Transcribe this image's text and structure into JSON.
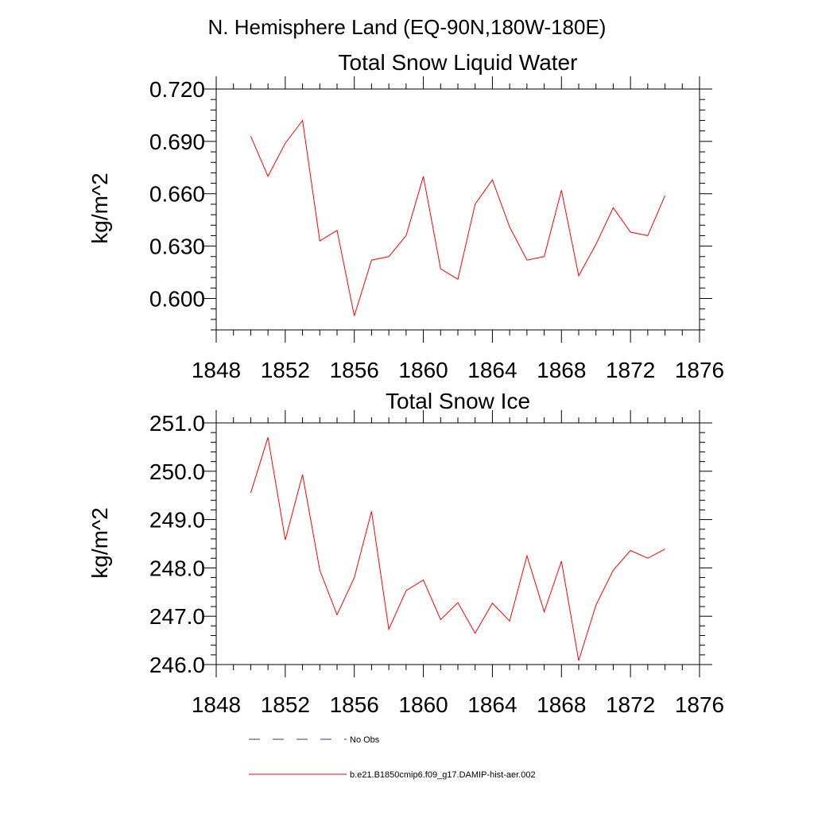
{
  "figure": {
    "region_title": "N. Hemisphere Land (EQ-90N,180W-180E)"
  },
  "colors": {
    "series_line": "#ff0000",
    "no_obs_line": "#3a3a6a",
    "axis": "#000000",
    "background": "#ffffff"
  },
  "legend": {
    "no_obs_label": "No Obs",
    "series_label": "b.e21.B1850cmip6.f09_g17.DAMIP-hist-aer.002"
  },
  "chart_data": [
    {
      "type": "line",
      "title": "Total Snow Liquid Water",
      "xlabel": "",
      "ylabel": "kg/m^2",
      "xlim": [
        1848,
        1876
      ],
      "ylim": [
        0.582,
        0.72
      ],
      "xticks": [
        1848,
        1852,
        1856,
        1860,
        1864,
        1868,
        1872,
        1876
      ],
      "xtick_labels": [
        "1848",
        "1852",
        "1856",
        "1860",
        "1864",
        "1868",
        "1872",
        "1876"
      ],
      "yticks": [
        0.6,
        0.63,
        0.66,
        0.69,
        0.72
      ],
      "ytick_labels": [
        "0.600",
        "0.630",
        "0.660",
        "0.690",
        "0.720"
      ],
      "grid": false,
      "x": [
        1850,
        1851,
        1852,
        1853,
        1854,
        1855,
        1856,
        1857,
        1858,
        1859,
        1860,
        1861,
        1862,
        1863,
        1864,
        1865,
        1866,
        1867,
        1868,
        1869,
        1870,
        1871,
        1872,
        1873,
        1874
      ],
      "series": [
        {
          "name": "b.e21.B1850cmip6.f09_g17.DAMIP-hist-aer.002",
          "values": [
            0.693,
            0.67,
            0.689,
            0.702,
            0.633,
            0.639,
            0.59,
            0.622,
            0.624,
            0.636,
            0.67,
            0.617,
            0.611,
            0.654,
            0.668,
            0.641,
            0.622,
            0.624,
            0.662,
            0.613,
            0.631,
            0.652,
            0.638,
            0.636,
            0.659
          ]
        }
      ]
    },
    {
      "type": "line",
      "title": "Total Snow Ice",
      "xlabel": "",
      "ylabel": "kg/m^2",
      "xlim": [
        1848,
        1876
      ],
      "ylim": [
        246.0,
        251.0
      ],
      "xticks": [
        1848,
        1852,
        1856,
        1860,
        1864,
        1868,
        1872,
        1876
      ],
      "xtick_labels": [
        "1848",
        "1852",
        "1856",
        "1860",
        "1864",
        "1868",
        "1872",
        "1876"
      ],
      "yticks": [
        246.0,
        247.0,
        248.0,
        249.0,
        250.0,
        251.0
      ],
      "ytick_labels": [
        "246.0",
        "247.0",
        "248.0",
        "249.0",
        "250.0",
        "251.0"
      ],
      "grid": false,
      "x": [
        1850,
        1851,
        1852,
        1853,
        1854,
        1855,
        1856,
        1857,
        1858,
        1859,
        1860,
        1861,
        1862,
        1863,
        1864,
        1865,
        1866,
        1867,
        1868,
        1869,
        1870,
        1871,
        1872,
        1873,
        1874
      ],
      "series": [
        {
          "name": "b.e21.B1850cmip6.f09_g17.DAMIP-hist-aer.002",
          "values": [
            249.55,
            250.7,
            248.58,
            249.93,
            247.95,
            247.03,
            247.8,
            249.17,
            246.73,
            247.53,
            247.75,
            246.93,
            247.28,
            246.65,
            247.27,
            246.9,
            248.25,
            247.09,
            248.14,
            246.08,
            247.23,
            247.95,
            248.36,
            248.2,
            248.39
          ]
        }
      ]
    }
  ]
}
